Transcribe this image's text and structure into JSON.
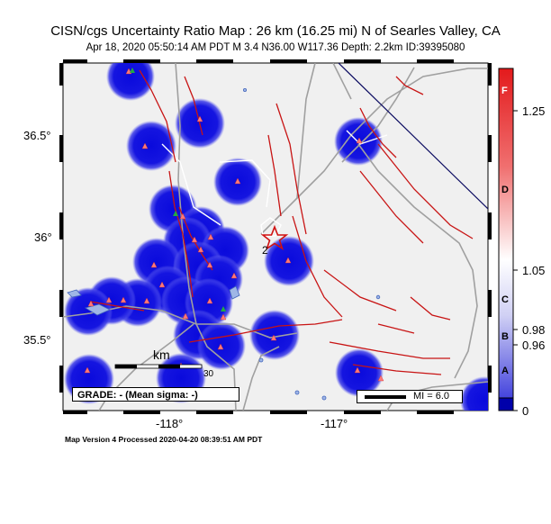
{
  "title": "CISN/cgs Uncertainty Ratio Map : 26 km (16.25 mi) N of Searles Valley, CA",
  "subtitle": "Apr 18, 2020 05:50:14 AM PDT   M 3.4   N36.00 W117.36   Depth: 2.2km   ID:39395080",
  "axes": {
    "lat_ticks": [
      "36.5°",
      "36°",
      "35.5°"
    ],
    "lon_ticks": [
      "-118°",
      "-117°"
    ]
  },
  "map": {
    "scale_label": "km",
    "scale_end": "30",
    "epicenter_label": "2",
    "grade_text": "GRADE: - (Mean sigma: -)",
    "mi_text": "MI = 6.0",
    "colors": {
      "land": "#f0f0f0",
      "station_blob": "#1010dd",
      "fault": "#c81414",
      "road": "#a0a0a0",
      "lake": "#6688cc",
      "border": "#0a0a60"
    }
  },
  "colorbar": {
    "letters": [
      "F",
      "D",
      "C",
      "B",
      "A"
    ],
    "values": [
      "1.25",
      "1.05",
      "0.98",
      "0.96",
      "0"
    ],
    "top_color": "#e31a1c",
    "mid_color": "#ffffff",
    "bottom_color": "#2222cc"
  },
  "footer": "Map Version 4 Processed 2020-04-20 08:39:51 AM PDT"
}
